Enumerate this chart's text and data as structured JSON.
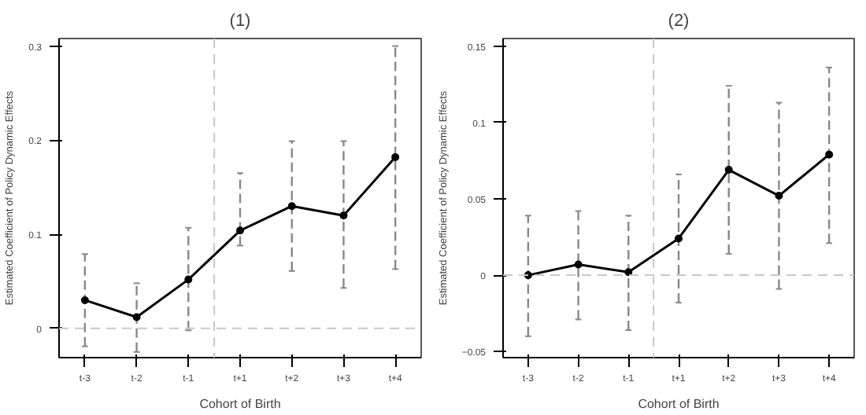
{
  "chart_data": [
    {
      "type": "line",
      "title": "(1)",
      "xlabel": "Cohort of Birth",
      "ylabel": "Estimated Coefficient of Policy Dynamic Effects",
      "categories": [
        "t-3",
        "t-2",
        "t-1",
        "t+1",
        "t+2",
        "t+3",
        "t+4"
      ],
      "ylim": [
        -0.031,
        0.308
      ],
      "yticks": [
        0,
        0.1,
        0.2,
        0.3
      ],
      "series": [
        {
          "color": "#000000",
          "values": [
            0.03,
            0.012,
            0.052,
            0.104,
            0.13,
            0.12,
            0.182
          ],
          "errors": [
            [
              -0.019,
              0.079
            ],
            [
              -0.025,
              0.048
            ],
            [
              -0.002,
              0.107
            ],
            [
              0.088,
              0.165
            ],
            [
              0.061,
              0.199
            ],
            [
              0.043,
              0.199
            ],
            [
              0.063,
              0.3
            ]
          ]
        }
      ],
      "marker": "circle",
      "line_style": "solid",
      "ref_lines": [
        {
          "axis": "y",
          "value": 0,
          "color": "#c8c8c8",
          "line_style": "dashed"
        }
      ]
    },
    {
      "type": "line",
      "title": "(2)",
      "xlabel": "Cohort of Birth",
      "ylabel": "Estimated Coefficient of Policy Dynamic Effects",
      "categories": [
        "t-3",
        "t-2",
        "t-1",
        "t+1",
        "t+2",
        "t+3",
        "t+4"
      ],
      "ylim": [
        -0.054,
        0.155
      ],
      "yticks": [
        -0.05,
        0,
        0.05,
        0.1,
        0.15
      ],
      "series": [
        {
          "color": "#000000",
          "values": [
            0.0,
            0.007,
            0.002,
            0.024,
            0.069,
            0.052,
            0.079
          ],
          "errors": [
            [
              -0.04,
              0.039
            ],
            [
              -0.029,
              0.042
            ],
            [
              -0.036,
              0.039
            ],
            [
              -0.018,
              0.066
            ],
            [
              0.014,
              0.124
            ],
            [
              -0.009,
              0.113
            ],
            [
              0.021,
              0.136
            ]
          ]
        }
      ],
      "marker": "circle",
      "line_style": "solid",
      "ref_lines": [
        {
          "axis": "y",
          "value": 0,
          "color": "#c8c8c8",
          "line_style": "dashed"
        }
      ]
    }
  ]
}
